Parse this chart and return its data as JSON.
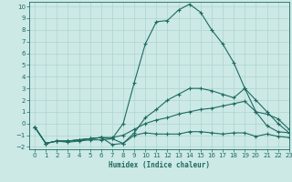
{
  "xlabel": "Humidex (Indice chaleur)",
  "background_color": "#cce9e6",
  "grid_color": "#aed4d0",
  "line_color": "#1e6b60",
  "xlim": [
    -0.5,
    23
  ],
  "ylim": [
    -2.2,
    10.4
  ],
  "xticks": [
    0,
    1,
    2,
    3,
    4,
    5,
    6,
    7,
    8,
    9,
    10,
    11,
    12,
    13,
    14,
    15,
    16,
    17,
    18,
    19,
    20,
    21,
    22,
    23
  ],
  "yticks": [
    -2,
    -1,
    0,
    1,
    2,
    3,
    4,
    5,
    6,
    7,
    8,
    9,
    10
  ],
  "series": [
    {
      "x": [
        0,
        1,
        2,
        3,
        4,
        5,
        6,
        7,
        8,
        9,
        10,
        11,
        12,
        13,
        14,
        15,
        16,
        17,
        18,
        19,
        20,
        21,
        22,
        23
      ],
      "y": [
        -0.3,
        -1.7,
        -1.5,
        -1.6,
        -1.5,
        -1.4,
        -1.4,
        -1.3,
        -1.7,
        -1.0,
        -0.8,
        -0.9,
        -0.9,
        -0.9,
        -0.7,
        -0.7,
        -0.8,
        -0.9,
        -0.8,
        -0.8,
        -1.1,
        -0.9,
        -1.1,
        -1.2
      ]
    },
    {
      "x": [
        0,
        1,
        2,
        3,
        4,
        5,
        6,
        7,
        8,
        9,
        10,
        11,
        12,
        13,
        14,
        15,
        16,
        17,
        18,
        19,
        20,
        21,
        22,
        23
      ],
      "y": [
        -0.3,
        -1.7,
        -1.5,
        -1.5,
        -1.4,
        -1.3,
        -1.2,
        -1.2,
        -1.0,
        -0.5,
        0.0,
        0.3,
        0.5,
        0.8,
        1.0,
        1.2,
        1.3,
        1.5,
        1.7,
        1.9,
        1.0,
        0.8,
        0.4,
        -0.5
      ]
    },
    {
      "x": [
        0,
        1,
        2,
        3,
        4,
        5,
        6,
        7,
        8,
        9,
        10,
        11,
        12,
        13,
        14,
        15,
        16,
        17,
        18,
        19,
        20,
        21,
        22,
        23
      ],
      "y": [
        -0.3,
        -1.7,
        -1.5,
        -1.5,
        -1.4,
        -1.3,
        -1.2,
        -1.8,
        -1.7,
        -0.8,
        0.5,
        1.2,
        2.0,
        2.5,
        3.0,
        3.0,
        2.8,
        2.5,
        2.2,
        3.0,
        1.0,
        -0.2,
        -0.7,
        -0.8
      ]
    },
    {
      "x": [
        0,
        1,
        2,
        3,
        4,
        5,
        6,
        7,
        8,
        9,
        10,
        11,
        12,
        13,
        14,
        15,
        16,
        17,
        18,
        19,
        20,
        21,
        22,
        23
      ],
      "y": [
        -0.3,
        -1.7,
        -1.5,
        -1.5,
        -1.4,
        -1.3,
        -1.2,
        -1.3,
        0.0,
        3.5,
        6.8,
        8.7,
        8.8,
        9.7,
        10.2,
        9.5,
        8.0,
        6.8,
        5.2,
        3.0,
        2.0,
        1.0,
        0.0,
        -0.8
      ]
    }
  ]
}
